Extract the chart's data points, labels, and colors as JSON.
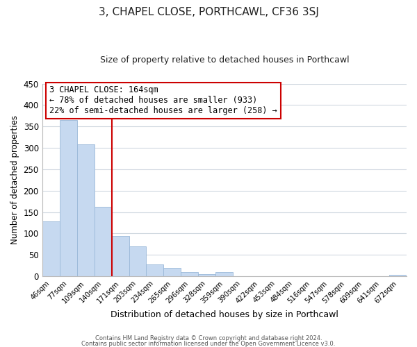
{
  "title": "3, CHAPEL CLOSE, PORTHCAWL, CF36 3SJ",
  "subtitle": "Size of property relative to detached houses in Porthcawl",
  "xlabel": "Distribution of detached houses by size in Porthcawl",
  "ylabel": "Number of detached properties",
  "bin_labels": [
    "46sqm",
    "77sqm",
    "109sqm",
    "140sqm",
    "171sqm",
    "203sqm",
    "234sqm",
    "265sqm",
    "296sqm",
    "328sqm",
    "359sqm",
    "390sqm",
    "422sqm",
    "453sqm",
    "484sqm",
    "516sqm",
    "547sqm",
    "578sqm",
    "609sqm",
    "641sqm",
    "672sqm"
  ],
  "bar_heights": [
    128,
    365,
    308,
    163,
    95,
    70,
    28,
    20,
    10,
    5,
    10,
    0,
    0,
    0,
    0,
    0,
    0,
    0,
    0,
    0,
    3
  ],
  "bar_color": "#c6d9f0",
  "bar_edge_color": "#9ab8d8",
  "vline_color": "#cc0000",
  "annotation_title": "3 CHAPEL CLOSE: 164sqm",
  "annotation_line1": "← 78% of detached houses are smaller (933)",
  "annotation_line2": "22% of semi-detached houses are larger (258) →",
  "annotation_box_color": "#ffffff",
  "annotation_box_edge": "#cc0000",
  "ylim": [
    0,
    450
  ],
  "yticks": [
    0,
    50,
    100,
    150,
    200,
    250,
    300,
    350,
    400,
    450
  ],
  "footer1": "Contains HM Land Registry data © Crown copyright and database right 2024.",
  "footer2": "Contains public sector information licensed under the Open Government Licence v3.0.",
  "bg_color": "#ffffff",
  "grid_color": "#d0d8e0"
}
